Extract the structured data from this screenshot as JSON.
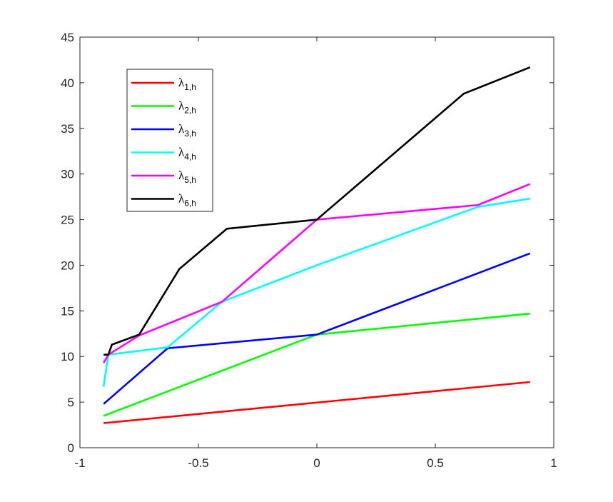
{
  "chart_data": {
    "type": "line",
    "title": "",
    "xlabel": "",
    "ylabel": "",
    "xlim": [
      -1,
      1
    ],
    "ylim": [
      0,
      45
    ],
    "x_ticks": [
      -1,
      -0.5,
      0,
      0.5,
      1
    ],
    "x_tick_labels": [
      "-1",
      "-0.5",
      "0",
      "0.5",
      "1"
    ],
    "y_ticks": [
      0,
      5,
      10,
      15,
      20,
      25,
      30,
      35,
      40,
      45
    ],
    "y_tick_labels": [
      "0",
      "5",
      "10",
      "15",
      "20",
      "25",
      "30",
      "35",
      "40",
      "45"
    ],
    "grid": false,
    "legend_position": "top-left",
    "series": [
      {
        "name": "λ",
        "subscript": "1,h",
        "color": "#ff0000",
        "points": [
          [
            -0.9,
            2.7
          ],
          [
            0.9,
            7.2
          ]
        ]
      },
      {
        "name": "λ",
        "subscript": "2,h",
        "color": "#00ff00",
        "points": [
          [
            -0.9,
            3.5
          ],
          [
            0.0,
            12.4
          ],
          [
            0.9,
            14.7
          ]
        ]
      },
      {
        "name": "λ",
        "subscript": "3,h",
        "color": "#0000ff",
        "points": [
          [
            -0.9,
            4.8
          ],
          [
            -0.63,
            10.9
          ],
          [
            0.0,
            12.4
          ],
          [
            0.9,
            21.3
          ]
        ]
      },
      {
        "name": "λ",
        "subscript": "4,h",
        "color": "#00ffff",
        "points": [
          [
            -0.9,
            6.7
          ],
          [
            -0.88,
            10.2
          ],
          [
            -0.63,
            11.0
          ],
          [
            -0.4,
            16.0
          ],
          [
            0.0,
            20.0
          ],
          [
            0.68,
            26.4
          ],
          [
            0.9,
            27.3
          ]
        ]
      },
      {
        "name": "λ",
        "subscript": "5,h",
        "color": "#ff00ff",
        "points": [
          [
            -0.9,
            9.3
          ],
          [
            -0.88,
            10.2
          ],
          [
            -0.75,
            12.3
          ],
          [
            -0.4,
            16.0
          ],
          [
            0.0,
            25.0
          ],
          [
            0.68,
            26.6
          ],
          [
            0.9,
            28.9
          ]
        ]
      },
      {
        "name": "λ",
        "subscript": "6,h",
        "color": "#000000",
        "points": [
          [
            -0.9,
            10.2
          ],
          [
            -0.88,
            10.2
          ],
          [
            -0.865,
            11.3
          ],
          [
            -0.75,
            12.4
          ],
          [
            -0.58,
            19.6
          ],
          [
            -0.38,
            24.0
          ],
          [
            0.0,
            25.0
          ],
          [
            0.62,
            38.8
          ],
          [
            0.9,
            41.7
          ]
        ]
      }
    ]
  }
}
